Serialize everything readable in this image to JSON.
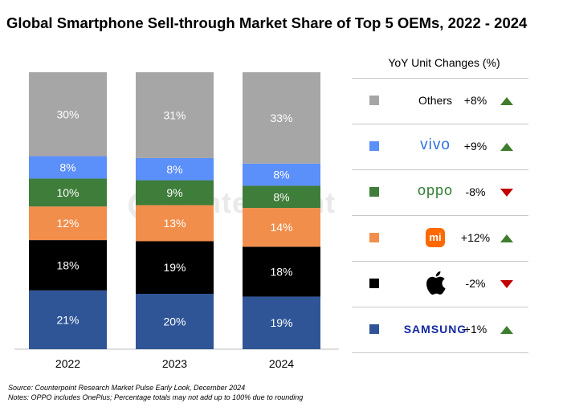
{
  "title": "Global Smartphone Sell-through Market Share of Top 5 OEMs, 2022 - 2024",
  "watermark": "Counterpoint",
  "chart_data": {
    "type": "bar",
    "stacked": true,
    "unit": "%",
    "categories": [
      "2022",
      "2023",
      "2024"
    ],
    "series": [
      {
        "name": "SAMSUNG",
        "color": "#2f5597",
        "values": [
          21,
          20,
          19
        ]
      },
      {
        "name": "Apple",
        "color": "#000000",
        "values": [
          18,
          19,
          18
        ]
      },
      {
        "name": "mi",
        "color": "#f28e4b",
        "values": [
          12,
          13,
          14
        ]
      },
      {
        "name": "oppo",
        "color": "#3e7d3a",
        "values": [
          10,
          9,
          8
        ]
      },
      {
        "name": "vivo",
        "color": "#5b8ff9",
        "values": [
          8,
          8,
          8
        ]
      },
      {
        "name": "Others",
        "color": "#a6a6a6",
        "values": [
          30,
          31,
          33
        ]
      }
    ]
  },
  "legend": {
    "title": "YoY Unit Changes (%)",
    "items": [
      {
        "brand": "Others",
        "change": "+8%",
        "direction": "up",
        "color": "#a6a6a6",
        "logo": "text"
      },
      {
        "brand": "vivo",
        "change": "+9%",
        "direction": "up",
        "color": "#5b8ff9",
        "logo": "vivo-logo"
      },
      {
        "brand": "oppo",
        "change": "-8%",
        "direction": "down",
        "color": "#3e7d3a",
        "logo": "oppo-logo"
      },
      {
        "brand": "mi",
        "change": "+12%",
        "direction": "up",
        "color": "#f28e4b",
        "logo": "xiaomi-logo"
      },
      {
        "brand": "Apple",
        "change": "-2%",
        "direction": "down",
        "color": "#000000",
        "logo": "apple-logo"
      },
      {
        "brand": "SAMSUNG",
        "change": "+1%",
        "direction": "up",
        "color": "#2f5597",
        "logo": "samsung-logo"
      }
    ]
  },
  "footer": {
    "source": "Source: Counterpoint Research Market Pulse Early Look, December 2024",
    "notes": "Notes: OPPO includes OnePlus; Percentage totals may not add up to 100% due to rounding"
  }
}
